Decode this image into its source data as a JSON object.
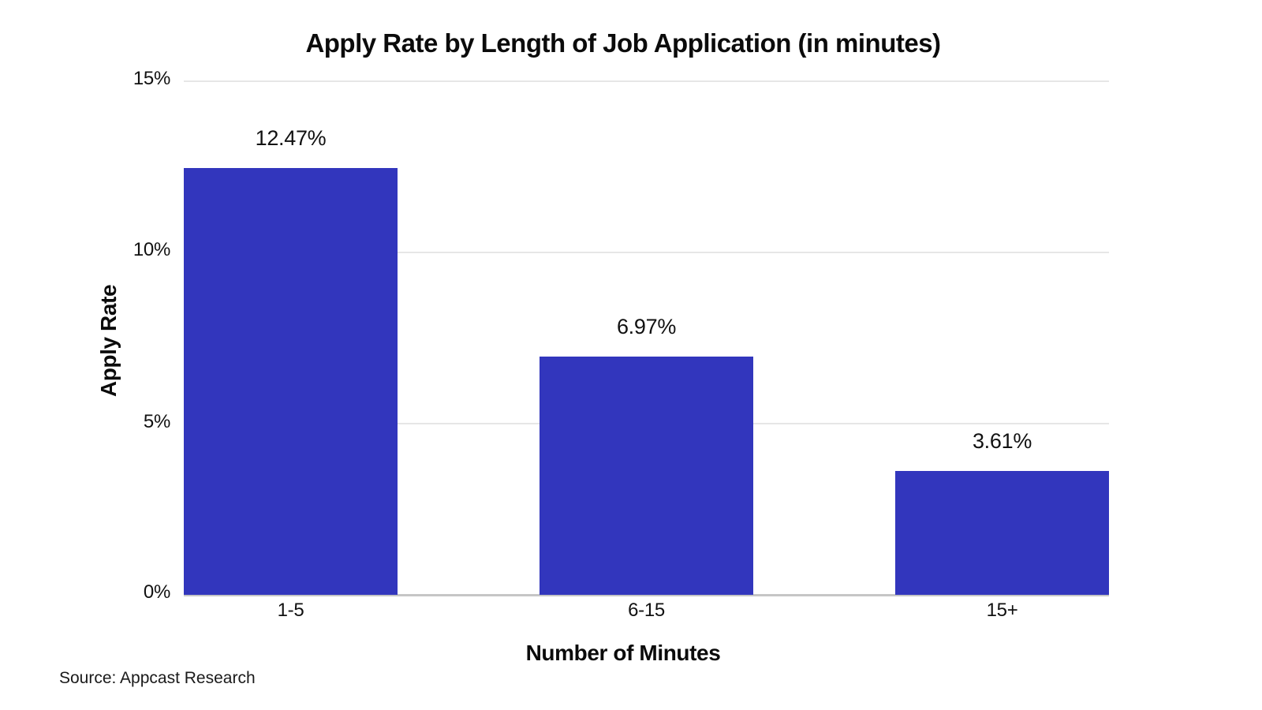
{
  "chart_data": {
    "type": "bar",
    "title": "Apply Rate by Length of Job Application (in minutes)",
    "categories": [
      "1-5",
      "6-15",
      "15+"
    ],
    "values": [
      12.47,
      6.97,
      3.61
    ],
    "value_labels": [
      "12.47%",
      "6.97%",
      "3.61%"
    ],
    "xlabel": "Number of Minutes",
    "ylabel": "Apply Rate",
    "ylim": [
      0,
      15
    ],
    "yticks": [
      "0%",
      "5%",
      "10%",
      "15%"
    ],
    "grid": "horizontal-light",
    "legend": "none",
    "bar_color": "#3236bd",
    "source": "Source: Appcast Research"
  }
}
